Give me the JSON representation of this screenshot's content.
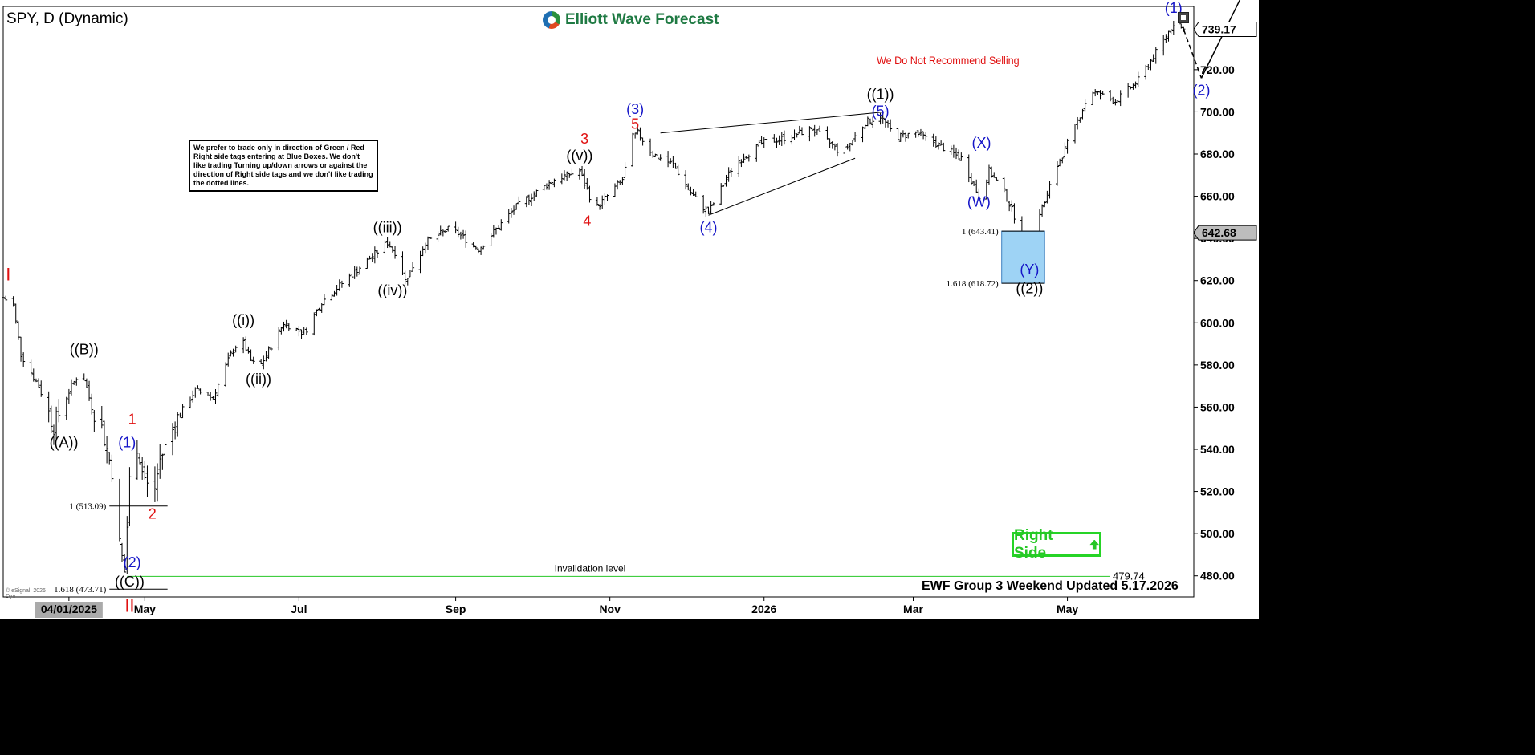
{
  "title": "SPY, D (Dynamic)",
  "logo_text": "Elliott Wave Forecast",
  "note": "We prefer to trade only in direction of Green / Red Right side tags entering at Blue Boxes. We don't like trading Turning up/down arrows or against the direction of Right side tags and we don't like trading the dotted lines.",
  "recommendation": "We Do Not Recommend Selling",
  "footer": "EWF Group 3 Weekend Updated 5.17.2026",
  "right_side": "Right Side",
  "copyright": "© eSignal, 2026",
  "dyn": "Dyn",
  "colors": {
    "blue_wave": "#1515c8",
    "red_wave": "#e01010",
    "black_wave": "#000000",
    "blue_box": "#9ed3f5",
    "green": "#26c726"
  },
  "chart_data": {
    "type": "bar",
    "subtype": "ohlc",
    "y_axis": {
      "min": 470,
      "max": 750,
      "ticks": [
        480,
        500,
        520,
        540,
        560,
        580,
        600,
        620,
        640,
        660,
        680,
        700,
        720
      ],
      "tick_labels": [
        "480.00",
        "500.00",
        "520.00",
        "540.00",
        "560.00",
        "580.00",
        "600.00",
        "620.00",
        "640.00",
        "660.00",
        "680.00",
        "700.00",
        "720.00"
      ]
    },
    "x_axis": {
      "labels": [
        "04/01/2025",
        "May",
        "Jul",
        "Sep",
        "Nov",
        "2026",
        "Mar",
        "May"
      ],
      "start": "2025-03-06",
      "end": "2026-06-20"
    },
    "price_tags": [
      {
        "value": 739.17,
        "label": "739.17"
      },
      {
        "value": 642.68,
        "label": "642.68"
      }
    ],
    "path": [
      {
        "d": "2025-03-06",
        "p": 612
      },
      {
        "d": "2025-03-10",
        "p": 608
      },
      {
        "d": "2025-03-13",
        "p": 585
      },
      {
        "d": "2025-03-20",
        "p": 570
      },
      {
        "d": "2025-03-26",
        "p": 551
      },
      {
        "d": "2025-03-31",
        "p": 565
      },
      {
        "d": "2025-04-03",
        "p": 572
      },
      {
        "d": "2025-04-06",
        "p": 578
      },
      {
        "d": "2025-04-10",
        "p": 560
      },
      {
        "d": "2025-04-14",
        "p": 550
      },
      {
        "d": "2025-04-17",
        "p": 535
      },
      {
        "d": "2025-04-19",
        "p": 525
      },
      {
        "d": "2025-04-21",
        "p": 495
      },
      {
        "d": "2025-04-23",
        "p": 482
      },
      {
        "d": "2025-04-25",
        "p": 525
      },
      {
        "d": "2025-04-27",
        "p": 548
      },
      {
        "d": "2025-04-30",
        "p": 530
      },
      {
        "d": "2025-05-04",
        "p": 515
      },
      {
        "d": "2025-05-07",
        "p": 535
      },
      {
        "d": "2025-05-14",
        "p": 555
      },
      {
        "d": "2025-05-21",
        "p": 568
      },
      {
        "d": "2025-05-28",
        "p": 565
      },
      {
        "d": "2025-06-04",
        "p": 585
      },
      {
        "d": "2025-06-08",
        "p": 593
      },
      {
        "d": "2025-06-12",
        "p": 582
      },
      {
        "d": "2025-06-15",
        "p": 578
      },
      {
        "d": "2025-06-25",
        "p": 600
      },
      {
        "d": "2025-07-03",
        "p": 595
      },
      {
        "d": "2025-07-10",
        "p": 610
      },
      {
        "d": "2025-07-22",
        "p": 623
      },
      {
        "d": "2025-08-05",
        "p": 638
      },
      {
        "d": "2025-08-09",
        "p": 632
      },
      {
        "d": "2025-08-12",
        "p": 620
      },
      {
        "d": "2025-08-20",
        "p": 638
      },
      {
        "d": "2025-08-30",
        "p": 645
      },
      {
        "d": "2025-09-10",
        "p": 635
      },
      {
        "d": "2025-09-25",
        "p": 655
      },
      {
        "d": "2025-10-10",
        "p": 668
      },
      {
        "d": "2025-10-20",
        "p": 672
      },
      {
        "d": "2025-10-24",
        "p": 660
      },
      {
        "d": "2025-10-27",
        "p": 655
      },
      {
        "d": "2025-11-06",
        "p": 668
      },
      {
        "d": "2025-11-10",
        "p": 688
      },
      {
        "d": "2025-11-12",
        "p": 690
      },
      {
        "d": "2025-11-18",
        "p": 680
      },
      {
        "d": "2025-11-26",
        "p": 675
      },
      {
        "d": "2025-12-04",
        "p": 660
      },
      {
        "d": "2025-12-10",
        "p": 652
      },
      {
        "d": "2025-12-20",
        "p": 675
      },
      {
        "d": "2025-12-31",
        "p": 685
      },
      {
        "d": "2026-01-10",
        "p": 688
      },
      {
        "d": "2026-01-20",
        "p": 692
      },
      {
        "d": "2026-02-01",
        "p": 680
      },
      {
        "d": "2026-02-10",
        "p": 695
      },
      {
        "d": "2026-02-16",
        "p": 698
      },
      {
        "d": "2026-02-22",
        "p": 688
      },
      {
        "d": "2026-03-02",
        "p": 690
      },
      {
        "d": "2026-03-10",
        "p": 685
      },
      {
        "d": "2026-03-20",
        "p": 678
      },
      {
        "d": "2026-03-27",
        "p": 660
      },
      {
        "d": "2026-03-31",
        "p": 672
      },
      {
        "d": "2026-04-06",
        "p": 662
      },
      {
        "d": "2026-04-12",
        "p": 645
      },
      {
        "d": "2026-04-16",
        "p": 632
      },
      {
        "d": "2026-04-19",
        "p": 650
      },
      {
        "d": "2026-04-22",
        "p": 657
      },
      {
        "d": "2026-04-26",
        "p": 672
      },
      {
        "d": "2026-05-03",
        "p": 690
      },
      {
        "d": "2026-05-10",
        "p": 710
      },
      {
        "d": "2026-05-20",
        "p": 705
      },
      {
        "d": "2026-05-29",
        "p": 715
      },
      {
        "d": "2026-06-06",
        "p": 730
      },
      {
        "d": "2026-06-12",
        "p": 742
      },
      {
        "d": "2026-06-16",
        "p": 739
      }
    ],
    "projection": [
      {
        "d": "2026-06-16",
        "p": 739
      },
      {
        "d": "2026-06-23",
        "p": 716
      }
    ],
    "projection_up": [
      {
        "d": "2026-06-23",
        "p": 716
      },
      {
        "d": "2026-07-09",
        "p": 755
      }
    ],
    "wave_labels": [
      {
        "text": "I",
        "d": "2025-03-08",
        "p": 620,
        "color": "red"
      },
      {
        "text": "((A))",
        "d": "2025-03-30",
        "p": 541,
        "color": "black"
      },
      {
        "text": "((B))",
        "d": "2025-04-07",
        "p": 585,
        "color": "black"
      },
      {
        "text": "1",
        "d": "2025-04-26",
        "p": 552,
        "color": "red"
      },
      {
        "text": "(1)",
        "d": "2025-04-24",
        "p": 541,
        "color": "blue"
      },
      {
        "text": "2",
        "d": "2025-05-04",
        "p": 507,
        "color": "red"
      },
      {
        "text": "(2)",
        "d": "2025-04-26",
        "p": 484,
        "color": "blue"
      },
      {
        "text": "((C))",
        "d": "2025-04-25",
        "p": 475,
        "color": "black"
      },
      {
        "text": "II",
        "d": "2025-04-25",
        "p": 463,
        "color": "red"
      },
      {
        "text": "((i))",
        "d": "2025-06-09",
        "p": 599,
        "color": "black"
      },
      {
        "text": "((ii))",
        "d": "2025-06-15",
        "p": 571,
        "color": "black"
      },
      {
        "text": "((iii))",
        "d": "2025-08-05",
        "p": 643,
        "color": "black"
      },
      {
        "text": "((iv))",
        "d": "2025-08-07",
        "p": 613,
        "color": "black"
      },
      {
        "text": "((v))",
        "d": "2025-10-20",
        "p": 677,
        "color": "black"
      },
      {
        "text": "3",
        "d": "2025-10-22",
        "p": 685,
        "color": "red"
      },
      {
        "text": "4",
        "d": "2025-10-23",
        "p": 646,
        "color": "red"
      },
      {
        "text": "5",
        "d": "2025-11-11",
        "p": 692,
        "color": "red"
      },
      {
        "text": "(3)",
        "d": "2025-11-11",
        "p": 699,
        "color": "blue"
      },
      {
        "text": "(4)",
        "d": "2025-12-10",
        "p": 643,
        "color": "blue"
      },
      {
        "text": "((1))",
        "d": "2026-02-16",
        "p": 706,
        "color": "black"
      },
      {
        "text": "(5)",
        "d": "2026-02-16",
        "p": 698,
        "color": "blue"
      },
      {
        "text": "(X)",
        "d": "2026-03-28",
        "p": 683,
        "color": "blue"
      },
      {
        "text": "(W)",
        "d": "2026-03-27",
        "p": 655,
        "color": "blue"
      },
      {
        "text": "(Y)",
        "d": "2026-04-16",
        "p": 623,
        "color": "blue"
      },
      {
        "text": "((2))",
        "d": "2026-04-16",
        "p": 614,
        "color": "black"
      },
      {
        "text": "(1)",
        "d": "2026-06-12",
        "p": 747,
        "color": "blue"
      },
      {
        "text": "(2)",
        "d": "2026-06-23",
        "p": 708,
        "color": "blue"
      }
    ],
    "fib_levels": [
      {
        "label": "1 (513.09)",
        "p": 513.09,
        "d_from": "2025-04-17",
        "d_to": "2025-05-10"
      },
      {
        "label": "1.618 (473.71)",
        "p": 473.71,
        "d_from": "2025-04-17",
        "d_to": "2025-05-10"
      },
      {
        "label": "1 (643.41)",
        "p": 643.41,
        "d_from": "2026-04-05",
        "d_to": "2026-04-22"
      },
      {
        "label": "1.618 (618.72)",
        "p": 618.72,
        "d_from": "2026-04-05",
        "d_to": "2026-04-22"
      }
    ],
    "blue_box": {
      "p_top": 643.41,
      "p_bottom": 618.72,
      "d_from": "2026-04-05",
      "d_to": "2026-04-22"
    },
    "invalidation": {
      "label": "Invalidation level",
      "value": 479.74,
      "value_label": "479.74"
    },
    "triangle_lines": [
      {
        "d1": "2025-11-21",
        "p1": 690,
        "d2": "2026-02-18",
        "p2": 700
      },
      {
        "d1": "2025-12-10",
        "p1": 651,
        "d2": "2026-02-06",
        "p2": 678
      }
    ]
  }
}
